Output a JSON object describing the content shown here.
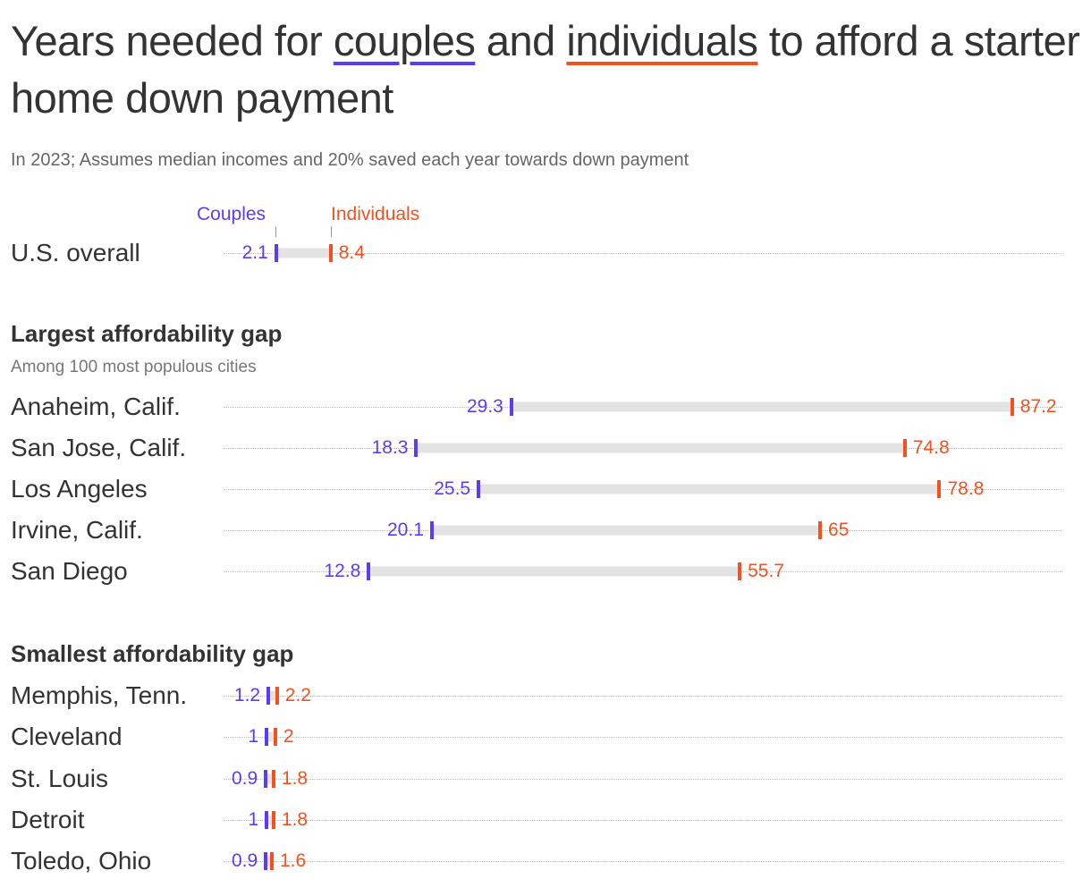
{
  "title": {
    "part1": "Years needed for ",
    "couples": "couples",
    "part2": " and ",
    "individuals": "individuals",
    "part3": " to afford a starter home down payment"
  },
  "subtitle": "In 2023; Assumes median incomes and 20% saved each year towards down payment",
  "colors": {
    "couples": "#5b3cf5",
    "individuals": "#f5501e"
  },
  "chart_data": {
    "type": "dumbbell",
    "legend": {
      "couples": "Couples",
      "individuals": "Individuals"
    },
    "overall": {
      "label": "U.S. overall",
      "couples": 2.1,
      "individuals": 8.4
    },
    "sections": [
      {
        "title": "Largest affordability gap",
        "note": "Among 100 most populous cities",
        "rows": [
          {
            "label": "Anaheim, Calif.",
            "couples": "29.3",
            "individuals": "87.2"
          },
          {
            "label": "San Jose, Calif.",
            "couples": "18.3",
            "individuals": "74.8"
          },
          {
            "label": "Los Angeles",
            "couples": "25.5",
            "individuals": "78.8"
          },
          {
            "label": "Irvine, Calif.",
            "couples": "20.1",
            "individuals": "65"
          },
          {
            "label": "San Diego",
            "couples": "12.8",
            "individuals": "55.7"
          }
        ]
      },
      {
        "title": "Smallest affordability gap",
        "rows": [
          {
            "label": "Memphis, Tenn.",
            "couples": "1.2",
            "individuals": "2.2"
          },
          {
            "label": "Cleveland",
            "couples": "1",
            "individuals": "2"
          },
          {
            "label": "St. Louis",
            "couples": "0.9",
            "individuals": "1.8"
          },
          {
            "label": "Detroit",
            "couples": "1",
            "individuals": "1.8"
          },
          {
            "label": "Toledo, Ohio",
            "couples": "0.9",
            "individuals": "1.6"
          }
        ]
      }
    ]
  }
}
